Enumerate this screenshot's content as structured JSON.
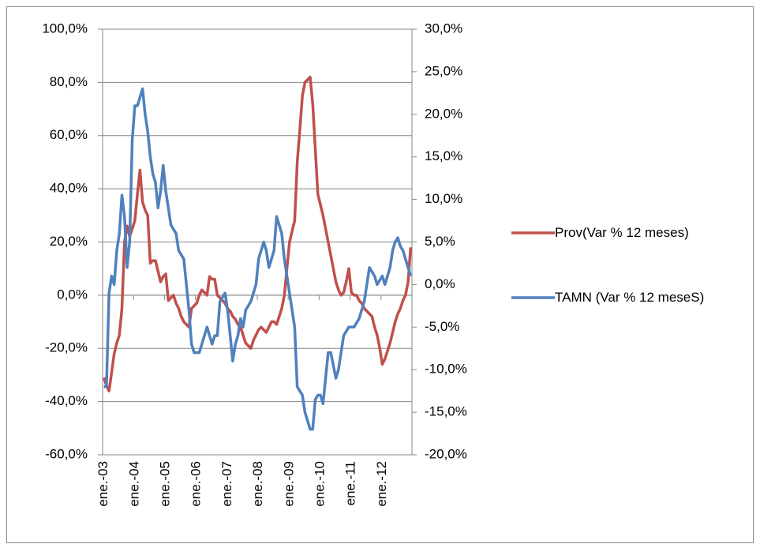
{
  "chart_data": {
    "type": "line",
    "categories": [
      "ene.-03",
      null,
      null,
      null,
      null,
      null,
      null,
      null,
      null,
      null,
      null,
      null,
      "ene.-04",
      null,
      null,
      null,
      null,
      null,
      null,
      null,
      null,
      null,
      null,
      null,
      "ene.-05",
      null,
      null,
      null,
      null,
      null,
      null,
      null,
      null,
      null,
      null,
      null,
      "ene.-06",
      null,
      null,
      null,
      null,
      null,
      null,
      null,
      null,
      null,
      null,
      null,
      "ene.-07",
      null,
      null,
      null,
      null,
      null,
      null,
      null,
      null,
      null,
      null,
      null,
      "ene.-08",
      null,
      null,
      null,
      null,
      null,
      null,
      null,
      null,
      null,
      null,
      null,
      "ene.-09",
      null,
      null,
      null,
      null,
      null,
      null,
      null,
      null,
      null,
      null,
      null,
      "ene.-10",
      null,
      null,
      null,
      null,
      null,
      null,
      null,
      null,
      null,
      null,
      null,
      "ene.-11",
      null,
      null,
      null,
      null,
      null,
      null,
      null,
      null,
      null,
      null,
      null,
      "ene.-12",
      null,
      null,
      null,
      null,
      null,
      null,
      null,
      null,
      null,
      null,
      null
    ],
    "series": [
      {
        "name": "Prov(Var % 12 meses)",
        "color": "#c0504d",
        "axis": "y",
        "values": [
          -31,
          -34,
          -36,
          -29,
          -22,
          -18,
          -15,
          -5,
          20,
          26,
          22,
          25,
          28,
          38,
          47,
          35,
          32,
          30,
          12,
          13,
          13,
          9,
          5,
          7,
          8,
          -2,
          -1,
          0,
          -3,
          -5,
          -8,
          -10,
          -11,
          -12,
          -5,
          -4,
          -3,
          0,
          2,
          1,
          0,
          7,
          6,
          6,
          0,
          -1,
          -2,
          -3,
          -5,
          -6,
          -8,
          -9,
          -11,
          -12,
          -15,
          -18,
          -19,
          -20,
          -17,
          -15,
          -13,
          -12,
          -13,
          -14,
          -12,
          -10,
          -10,
          -11,
          -8,
          -5,
          0,
          10,
          20,
          24,
          28,
          50,
          62,
          75,
          80,
          81,
          82,
          72,
          55,
          38,
          34,
          30,
          25,
          20,
          15,
          10,
          5,
          2,
          0,
          1,
          5,
          10,
          1,
          0,
          0,
          -2,
          -3,
          -5,
          -6,
          -7,
          -8,
          -12,
          -15,
          -20,
          -26,
          -24,
          -21,
          -18,
          -14,
          -10,
          -7,
          -5,
          -2,
          0,
          5,
          18
        ]
      },
      {
        "name": "TAMN (Var % 12 meseS)",
        "color": "#4f81bd",
        "axis": "y2",
        "values": [
          -12,
          -12,
          -1,
          1,
          0,
          4,
          6,
          10.5,
          8,
          2,
          5,
          17,
          21,
          21,
          22,
          23,
          20,
          18,
          15,
          13,
          12,
          9,
          11,
          14,
          11,
          9,
          7,
          6.5,
          6,
          4,
          3.5,
          3,
          0,
          -3,
          -7,
          -8,
          -8,
          -8,
          -7,
          -6,
          -5,
          -6,
          -7,
          -6,
          -6,
          -2,
          -1.5,
          -1,
          -3,
          -6,
          -9,
          -7,
          -6,
          -4,
          -5,
          -3,
          -2.5,
          -2,
          -1,
          0,
          3,
          4,
          5,
          4,
          2,
          3,
          4,
          8,
          7,
          6,
          3,
          1,
          -1,
          -3,
          -5,
          -12,
          -12.5,
          -13,
          -15,
          -16,
          -17,
          -17,
          -13.5,
          -13,
          -13,
          -14,
          -11,
          -8,
          -8,
          -9.5,
          -11,
          -10,
          -8,
          -6,
          -5.5,
          -5,
          -5,
          -5,
          -4.5,
          -4,
          -3,
          -2,
          0,
          2,
          1.5,
          1,
          0,
          0.5,
          1,
          0,
          1,
          2,
          4,
          5,
          5.5,
          4.5,
          4,
          3,
          2,
          1
        ]
      }
    ],
    "ylim": [
      -60,
      100
    ],
    "yticks": [
      {
        "value": 100,
        "label": "100,0%"
      },
      {
        "value": 80,
        "label": "80,0%"
      },
      {
        "value": 60,
        "label": "60,0%"
      },
      {
        "value": 40,
        "label": "40,0%"
      },
      {
        "value": 20,
        "label": "20,0%"
      },
      {
        "value": 0,
        "label": "0,0%"
      },
      {
        "value": -20,
        "label": "-20,0%"
      },
      {
        "value": -40,
        "label": "-40,0%"
      },
      {
        "value": -60,
        "label": "-60,0%"
      }
    ],
    "y2lim": [
      -20,
      30
    ],
    "y2ticks": [
      {
        "value": 30,
        "label": "30,0%"
      },
      {
        "value": 25,
        "label": "25,0%"
      },
      {
        "value": 20,
        "label": "20,0%"
      },
      {
        "value": 15,
        "label": "15,0%"
      },
      {
        "value": 10,
        "label": "10,0%"
      },
      {
        "value": 5,
        "label": "5,0%"
      },
      {
        "value": 0,
        "label": "0,0%"
      },
      {
        "value": -5,
        "label": "-5,0%"
      },
      {
        "value": -10,
        "label": "-10,0%"
      },
      {
        "value": -15,
        "label": "-15,0%"
      },
      {
        "value": -20,
        "label": "-20,0%"
      }
    ],
    "grid": true,
    "legend_position": "right"
  }
}
